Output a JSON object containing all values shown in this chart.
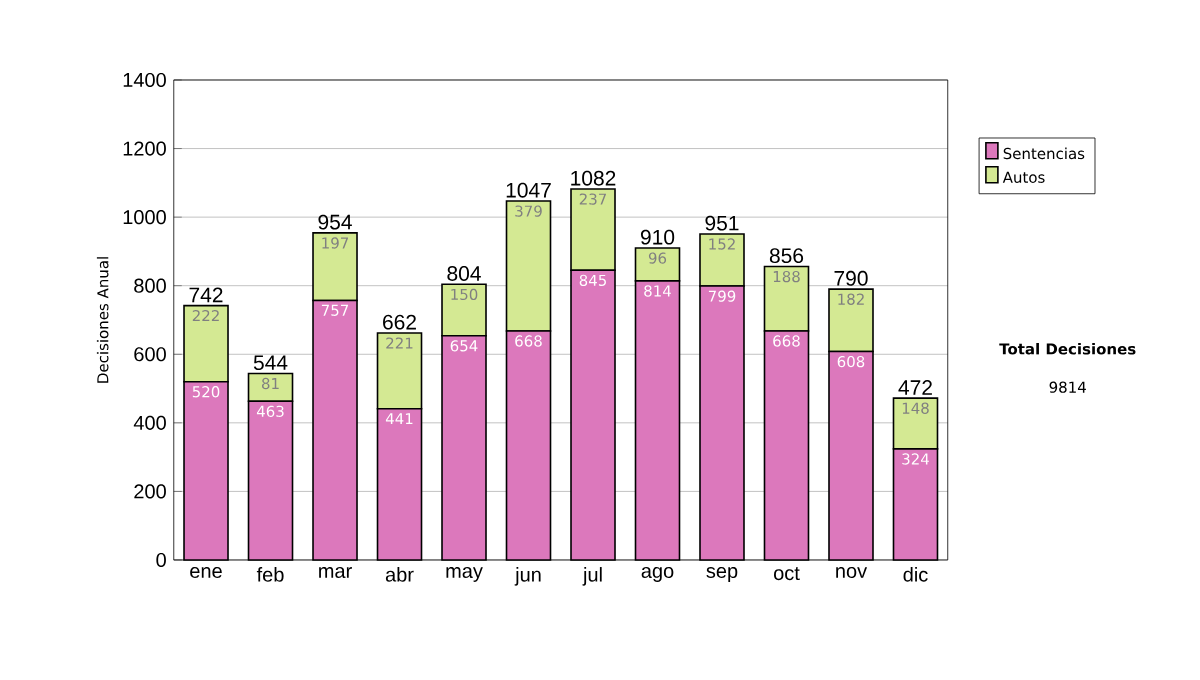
{
  "chart_data": {
    "type": "bar",
    "stacked": true,
    "ylabel": "Decisiones Anual",
    "categories": [
      "ene",
      "feb",
      "mar",
      "abr",
      "may",
      "jun",
      "jul",
      "ago",
      "sep",
      "oct",
      "nov",
      "dic"
    ],
    "series": [
      {
        "name": "Sentencias",
        "color": "#dc78bc",
        "values": [
          520,
          463,
          757,
          441,
          654,
          668,
          845,
          814,
          799,
          668,
          608,
          324
        ]
      },
      {
        "name": "Autos",
        "color": "#d4e993",
        "values": [
          222,
          81,
          197,
          221,
          150,
          379,
          237,
          96,
          152,
          188,
          182,
          148
        ]
      }
    ],
    "totals": [
      "742",
      "544",
      "954",
      "662",
      "804",
      "1047",
      "1082",
      "910",
      "951",
      "856",
      "790",
      "472"
    ],
    "data_labels": true,
    "ylim": [
      0,
      1400
    ],
    "yticks": [
      0,
      200,
      400,
      600,
      800,
      1000,
      1200,
      1400
    ],
    "grid": "y",
    "legend": "right",
    "annotations": [
      "Total Decisiones",
      "9814"
    ]
  }
}
